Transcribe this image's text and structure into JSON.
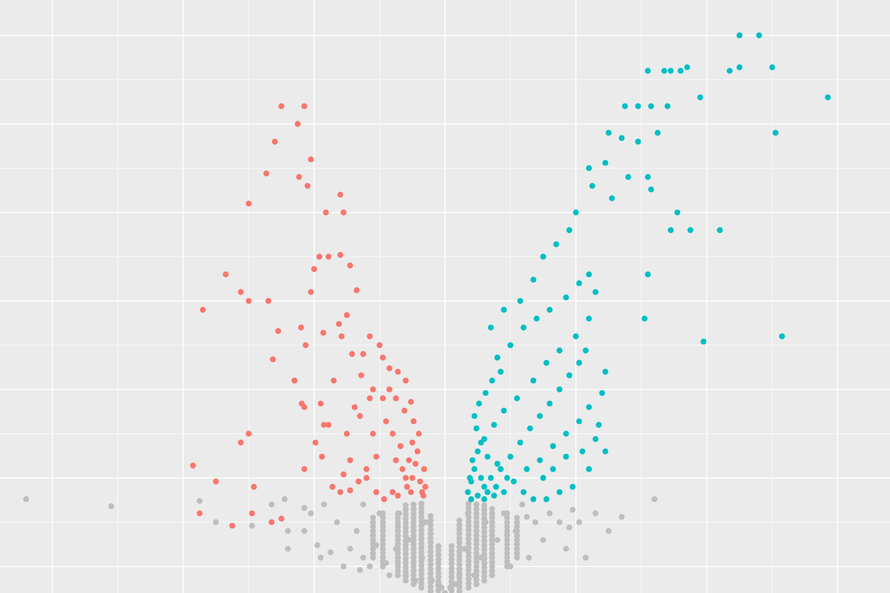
{
  "chart_data": {
    "type": "scatter",
    "title": "",
    "xlabel": "",
    "ylabel": "",
    "xlim": [
      -6.8,
      6.8
    ],
    "ylim": [
      -0.15,
      3.2
    ],
    "grid": true,
    "legend": "none",
    "background": "#ebebeb",
    "gridline_color": "#ffffff",
    "colors": {
      "down": "#f8766d",
      "up": "#00bfc4",
      "ns": "#bebebe"
    },
    "series": [
      {
        "key": "down",
        "points": [
          [
            -2.5,
            2.6
          ],
          [
            -2.15,
            2.6
          ],
          [
            -2.25,
            2.5
          ],
          [
            -2.6,
            2.4
          ],
          [
            -2.73,
            2.22
          ],
          [
            -2.05,
            2.3
          ],
          [
            -2.23,
            2.2
          ],
          [
            -2.1,
            2.15
          ],
          [
            -1.6,
            2.1
          ],
          [
            -1.55,
            2.0
          ],
          [
            -1.82,
            2.0
          ],
          [
            -3.0,
            2.05
          ],
          [
            -3.35,
            1.65
          ],
          [
            -3.12,
            1.55
          ],
          [
            -3.0,
            1.5
          ],
          [
            -2.7,
            1.5
          ],
          [
            -2.63,
            1.17
          ],
          [
            -2.19,
            0.92
          ],
          [
            -2.55,
            1.33
          ],
          [
            -2.2,
            1.35
          ],
          [
            -2.05,
            1.55
          ],
          [
            -2.0,
            1.68
          ],
          [
            -1.92,
            1.75
          ],
          [
            -1.78,
            1.75
          ],
          [
            -1.6,
            1.76
          ],
          [
            -1.45,
            1.7
          ],
          [
            -1.35,
            1.56
          ],
          [
            -1.5,
            1.42
          ],
          [
            -1.62,
            1.37
          ],
          [
            -1.86,
            1.32
          ],
          [
            -2.13,
            1.25
          ],
          [
            -2.3,
            1.05
          ],
          [
            -3.7,
            1.45
          ],
          [
            -3.85,
            0.57
          ],
          [
            -3.75,
            0.3
          ],
          [
            -3.5,
            0.48
          ],
          [
            -3.25,
            0.23
          ],
          [
            -3.12,
            0.7
          ],
          [
            -3.0,
            0.75
          ],
          [
            -2.95,
            0.3
          ],
          [
            -2.92,
            0.45
          ],
          [
            -2.65,
            0.25
          ],
          [
            -2.5,
            0.27
          ],
          [
            -2.15,
            0.55
          ],
          [
            -2.15,
            0.9
          ],
          [
            -1.9,
            0.92
          ],
          [
            -1.78,
            0.8
          ],
          [
            -1.55,
            0.52
          ],
          [
            -1.45,
            0.6
          ],
          [
            -1.2,
            0.5
          ],
          [
            -1.05,
            0.42
          ],
          [
            -0.93,
            0.38
          ],
          [
            -0.8,
            0.42
          ],
          [
            -0.72,
            0.4
          ],
          [
            -0.6,
            0.5
          ],
          [
            -0.55,
            0.6
          ],
          [
            -0.5,
            0.7
          ],
          [
            -0.48,
            0.82
          ],
          [
            -0.52,
            0.93
          ],
          [
            -0.6,
            1.05
          ],
          [
            -0.72,
            1.1
          ],
          [
            -0.85,
            1.12
          ],
          [
            -0.95,
            1.18
          ],
          [
            -1.1,
            1.0
          ],
          [
            -1.28,
            1.08
          ],
          [
            -1.42,
            1.2
          ],
          [
            -1.58,
            1.3
          ],
          [
            -1.7,
            1.05
          ],
          [
            -1.85,
            0.8
          ],
          [
            -1.98,
            0.7
          ],
          [
            -1.1,
            0.75
          ],
          [
            -1.3,
            0.85
          ],
          [
            -1.15,
            0.95
          ],
          [
            -0.95,
            0.95
          ],
          [
            -0.8,
            0.75
          ],
          [
            -0.68,
            0.68
          ],
          [
            -0.62,
            0.88
          ],
          [
            -0.75,
            0.95
          ],
          [
            -0.9,
            0.82
          ],
          [
            -1.05,
            0.62
          ],
          [
            -1.2,
            0.55
          ],
          [
            -1.32,
            0.48
          ],
          [
            -1.45,
            0.43
          ],
          [
            -1.6,
            0.42
          ],
          [
            -1.72,
            0.45
          ],
          [
            -1.88,
            0.62
          ],
          [
            -1.5,
            0.75
          ],
          [
            -1.38,
            0.9
          ],
          [
            -1.25,
            1.2
          ],
          [
            -1.15,
            1.3
          ],
          [
            -1.0,
            1.25
          ],
          [
            -0.85,
            1.0
          ],
          [
            -0.75,
            0.6
          ],
          [
            -0.65,
            0.55
          ],
          [
            -0.58,
            0.45
          ],
          [
            -0.52,
            0.42
          ],
          [
            -0.5,
            0.5
          ],
          [
            -0.45,
            0.58
          ],
          [
            -0.42,
            0.65
          ],
          [
            -0.4,
            0.75
          ],
          [
            -0.38,
            0.48
          ],
          [
            -0.35,
            0.42
          ],
          [
            -0.32,
            0.55
          ],
          [
            -0.3,
            0.45
          ],
          [
            -0.33,
            0.4
          ]
        ]
      },
      {
        "key": "up",
        "points": [
          [
            4.5,
            3.0
          ],
          [
            4.8,
            3.0
          ],
          [
            3.1,
            2.8
          ],
          [
            3.35,
            2.8
          ],
          [
            3.45,
            2.8
          ],
          [
            3.6,
            2.8
          ],
          [
            3.7,
            2.82
          ],
          [
            4.35,
            2.8
          ],
          [
            4.5,
            2.82
          ],
          [
            5.0,
            2.82
          ],
          [
            3.9,
            2.65
          ],
          [
            5.85,
            2.65
          ],
          [
            2.5,
            2.45
          ],
          [
            2.75,
            2.6
          ],
          [
            2.95,
            2.6
          ],
          [
            3.15,
            2.6
          ],
          [
            3.4,
            2.6
          ],
          [
            2.7,
            2.42
          ],
          [
            2.95,
            2.4
          ],
          [
            3.25,
            2.45
          ],
          [
            5.05,
            2.45
          ],
          [
            2.45,
            2.28
          ],
          [
            2.8,
            2.2
          ],
          [
            3.1,
            2.2
          ],
          [
            3.15,
            2.13
          ],
          [
            2.55,
            2.08
          ],
          [
            3.55,
            2.0
          ],
          [
            3.45,
            1.9
          ],
          [
            3.75,
            1.9
          ],
          [
            4.2,
            1.9
          ],
          [
            3.1,
            1.65
          ],
          [
            3.05,
            1.4
          ],
          [
            3.95,
            1.27
          ],
          [
            5.15,
            1.3
          ],
          [
            2.2,
            2.25
          ],
          [
            2.25,
            2.15
          ],
          [
            2.0,
            2.0
          ],
          [
            1.9,
            1.9
          ],
          [
            1.7,
            1.82
          ],
          [
            1.5,
            1.75
          ],
          [
            1.35,
            1.62
          ],
          [
            1.15,
            1.5
          ],
          [
            0.9,
            1.45
          ],
          [
            0.7,
            1.35
          ],
          [
            0.8,
            1.18
          ],
          [
            1.0,
            1.25
          ],
          [
            1.2,
            1.35
          ],
          [
            1.4,
            1.4
          ],
          [
            1.6,
            1.45
          ],
          [
            1.85,
            1.52
          ],
          [
            2.05,
            1.6
          ],
          [
            2.2,
            1.65
          ],
          [
            2.3,
            1.55
          ],
          [
            2.2,
            1.4
          ],
          [
            2.0,
            1.3
          ],
          [
            1.75,
            1.22
          ],
          [
            1.55,
            1.15
          ],
          [
            1.35,
            1.05
          ],
          [
            1.1,
            0.95
          ],
          [
            0.9,
            0.88
          ],
          [
            0.75,
            0.8
          ],
          [
            0.6,
            0.72
          ],
          [
            0.5,
            0.65
          ],
          [
            0.45,
            0.55
          ],
          [
            0.4,
            0.48
          ],
          [
            0.35,
            0.42
          ],
          [
            0.4,
            0.38
          ],
          [
            0.5,
            0.4
          ],
          [
            0.6,
            0.45
          ],
          [
            0.7,
            0.5
          ],
          [
            0.85,
            0.55
          ],
          [
            1.0,
            0.62
          ],
          [
            1.15,
            0.7
          ],
          [
            1.3,
            0.78
          ],
          [
            1.45,
            0.85
          ],
          [
            1.6,
            0.92
          ],
          [
            1.75,
            1.0
          ],
          [
            1.9,
            1.08
          ],
          [
            2.05,
            1.15
          ],
          [
            2.15,
            1.22
          ],
          [
            2.2,
            0.9
          ],
          [
            2.05,
            0.82
          ],
          [
            1.85,
            0.75
          ],
          [
            1.65,
            0.68
          ],
          [
            1.45,
            0.6
          ],
          [
            1.25,
            0.55
          ],
          [
            1.05,
            0.48
          ],
          [
            0.9,
            0.42
          ],
          [
            0.75,
            0.4
          ],
          [
            0.6,
            0.38
          ],
          [
            1.5,
            0.5
          ],
          [
            1.65,
            0.55
          ],
          [
            1.85,
            0.62
          ],
          [
            2.1,
            0.65
          ],
          [
            2.3,
            0.72
          ],
          [
            2.4,
            0.98
          ],
          [
            2.45,
            1.1
          ],
          [
            2.35,
            0.8
          ],
          [
            2.45,
            0.65
          ],
          [
            2.2,
            0.55
          ],
          [
            1.95,
            0.45
          ],
          [
            1.75,
            0.42
          ],
          [
            1.55,
            0.38
          ],
          [
            1.35,
            0.38
          ],
          [
            1.2,
            0.42
          ],
          [
            0.95,
            0.5
          ],
          [
            0.8,
            0.58
          ],
          [
            0.65,
            0.62
          ],
          [
            0.55,
            0.7
          ],
          [
            0.48,
            0.78
          ],
          [
            0.45,
            0.85
          ],
          [
            0.52,
            0.92
          ],
          [
            0.62,
            0.98
          ],
          [
            0.72,
            1.05
          ],
          [
            0.85,
            1.1
          ],
          [
            0.38,
            0.5
          ],
          [
            0.42,
            0.6
          ],
          [
            0.55,
            0.5
          ],
          [
            0.65,
            0.42
          ],
          [
            0.78,
            0.45
          ]
        ]
      },
      {
        "key": "ns",
        "points": [
          [
            -6.4,
            0.38
          ],
          [
            -5.1,
            0.34
          ],
          [
            -3.75,
            0.37
          ],
          [
            -3.5,
            0.25
          ],
          [
            -2.95,
            0.23
          ],
          [
            -2.65,
            0.35
          ],
          [
            -2.45,
            0.38
          ],
          [
            -2.4,
            0.2
          ],
          [
            -2.4,
            0.1
          ],
          [
            -2.15,
            0.2
          ],
          [
            -2.15,
            0.33
          ],
          [
            -1.95,
            0.12
          ],
          [
            -1.9,
            0.05
          ],
          [
            -1.85,
            0.35
          ],
          [
            -1.75,
            0.08
          ],
          [
            -1.65,
            0.25
          ],
          [
            -1.55,
            0.0
          ],
          [
            -1.45,
            0.1
          ],
          [
            -1.35,
            0.2
          ],
          [
            -1.25,
            0.05
          ],
          [
            -1.25,
            0.35
          ],
          [
            -1.15,
            0.0
          ],
          [
            -1.05,
            0.12
          ],
          [
            -0.95,
            0.25
          ],
          [
            -0.85,
            -0.05
          ],
          [
            -0.75,
            0.1
          ],
          [
            -0.7,
            0.3
          ],
          [
            -0.6,
            -0.05
          ],
          [
            -0.55,
            0.15
          ],
          [
            -0.45,
            -0.08
          ],
          [
            -0.35,
            0.05
          ],
          [
            -0.3,
            0.25
          ],
          [
            -0.2,
            -0.08
          ],
          [
            -0.1,
            -0.1
          ],
          [
            -0.05,
            -0.12
          ],
          [
            0.0,
            -0.15
          ],
          [
            0.08,
            -0.12
          ],
          [
            0.15,
            -0.1
          ],
          [
            0.22,
            -0.05
          ],
          [
            0.3,
            0.1
          ],
          [
            0.35,
            0.3
          ],
          [
            0.45,
            -0.05
          ],
          [
            0.55,
            0.05
          ],
          [
            0.62,
            0.25
          ],
          [
            0.72,
            -0.05
          ],
          [
            0.8,
            0.15
          ],
          [
            0.9,
            0.3
          ],
          [
            1.0,
            0.0
          ],
          [
            1.08,
            0.2
          ],
          [
            1.18,
            0.35
          ],
          [
            1.28,
            0.05
          ],
          [
            1.38,
            0.25
          ],
          [
            1.5,
            0.15
          ],
          [
            1.6,
            0.3
          ],
          [
            1.75,
            0.25
          ],
          [
            1.85,
            0.1
          ],
          [
            1.95,
            0.32
          ],
          [
            2.05,
            0.25
          ],
          [
            2.15,
            0.05
          ],
          [
            2.3,
            0.3
          ],
          [
            2.5,
            0.2
          ],
          [
            2.7,
            0.28
          ],
          [
            3.2,
            0.38
          ],
          [
            -1.3,
            -0.02
          ],
          [
            -1.0,
            0.3
          ],
          [
            -0.9,
            0.02
          ],
          [
            0.95,
            0.18
          ],
          [
            1.25,
            0.28
          ],
          [
            1.9,
            0.22
          ],
          [
            -2.05,
            0.3
          ]
        ],
        "columns": [
          [
            -0.72,
            -0.05,
            0.32
          ],
          [
            -0.6,
            -0.08,
            0.35
          ],
          [
            -0.48,
            -0.1,
            0.36
          ],
          [
            -0.36,
            -0.12,
            0.36
          ],
          [
            -0.22,
            -0.14,
            0.3
          ],
          [
            -0.1,
            -0.16,
            0.12
          ],
          [
            0.1,
            -0.16,
            0.12
          ],
          [
            0.22,
            -0.14,
            0.28
          ],
          [
            0.36,
            -0.12,
            0.36
          ],
          [
            0.48,
            -0.1,
            0.36
          ],
          [
            0.6,
            -0.08,
            0.35
          ],
          [
            0.72,
            -0.05,
            0.33
          ],
          [
            -0.95,
            0.0,
            0.3
          ],
          [
            -1.1,
            0.05,
            0.28
          ],
          [
            0.95,
            0.0,
            0.3
          ],
          [
            1.1,
            0.05,
            0.28
          ]
        ]
      }
    ]
  }
}
